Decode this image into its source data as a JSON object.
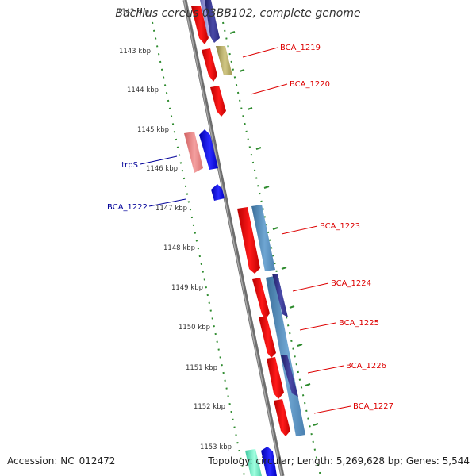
{
  "title": "Bacillus cereus 03BB102, complete genome",
  "accession_line": "Accession: NC_012472",
  "topology_line": "Topology: circular; Length: 5,269,628 bp; Genes: 5,544",
  "colors": {
    "backbone": "#8a8a8a",
    "tick": "#2e8b2e",
    "label_red": "#dd0000",
    "label_blue": "#000099"
  },
  "kbp_labels": [
    "1142 kbp",
    "1143 kbp",
    "1144 kbp",
    "1145 kbp",
    "1146 kbp",
    "1147 kbp",
    "1148 kbp",
    "1149 kbp",
    "1150 kbp",
    "1151 kbp",
    "1152 kbp",
    "1153 kbp"
  ],
  "gene_labels": {
    "bca1219": "BCA_1219",
    "bca1220": "BCA_1220",
    "trpS": "trpS",
    "bca1222": "BCA_1222",
    "bca1223": "BCA_1223",
    "bca1224": "BCA_1224",
    "bca1225": "BCA_1225",
    "bca1226": "BCA_1226",
    "bca1227": "BCA_1227"
  }
}
